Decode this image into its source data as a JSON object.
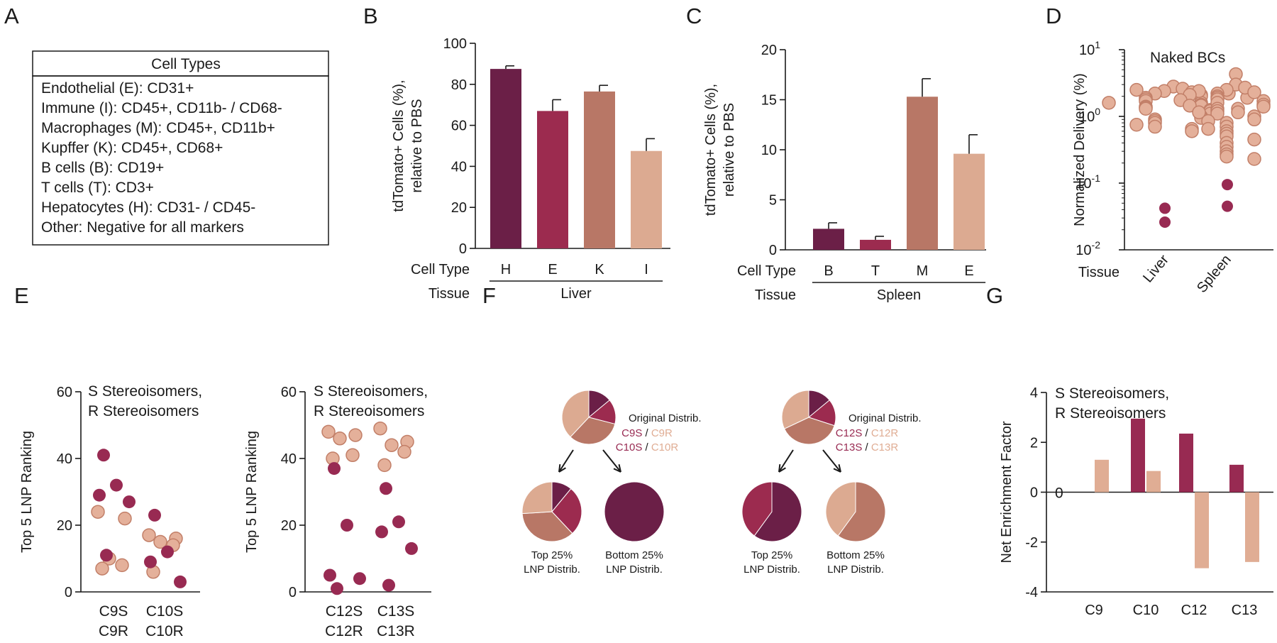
{
  "colors": {
    "H": "#6b1f47",
    "E": "#9c2b4f",
    "K": "#b87766",
    "I": "#dcaa91",
    "S": "#982a52",
    "R": "#e0ad94",
    "marker_fill": "#e4b09a",
    "marker_edge": "#c27f68",
    "outlier": "#982a52",
    "text": "#1a1a1a"
  },
  "panel_labels": [
    "A",
    "B",
    "C",
    "D",
    "E",
    "F",
    "G"
  ],
  "panel_a": {
    "title": "Cell Types",
    "rows": [
      "Endothelial (E): CD31+",
      "Immune (I): CD45+, CD11b- / CD68-",
      "Macrophages (M): CD45+, CD11b+",
      "Kupffer (K): CD45+, CD68+",
      "B cells (B): CD19+",
      "T cells (T): CD3+",
      "Hepatocytes (H): CD31- / CD45-",
      "Other: Negative for all markers"
    ]
  },
  "chart_data": [
    {
      "panel": "B",
      "type": "bar",
      "ylabel_lines": [
        "tdTomato+ Cells (%),",
        "relative to PBS"
      ],
      "ylim": [
        0,
        100
      ],
      "yticks": [
        "0",
        "20",
        "40",
        "60",
        "80",
        "100"
      ],
      "row_labels": [
        "Cell Type",
        "Tissue"
      ],
      "categories": [
        "H",
        "E",
        "K",
        "I"
      ],
      "values": [
        87.5,
        67,
        76.5,
        47.5
      ],
      "errors": [
        1.5,
        5.5,
        3,
        6
      ],
      "bar_colors": [
        "#6b1f47",
        "#9c2b4f",
        "#b87766",
        "#dcaa91"
      ],
      "group_label": "Liver"
    },
    {
      "panel": "C",
      "type": "bar",
      "ylabel_lines": [
        "tdTomato+ Cells (%),",
        "relative to PBS"
      ],
      "ylim": [
        0,
        20
      ],
      "yticks": [
        "0",
        "5",
        "10",
        "15",
        "20"
      ],
      "row_labels": [
        "Cell Type",
        "Tissue"
      ],
      "categories": [
        "B",
        "T",
        "M",
        "E"
      ],
      "values": [
        2.1,
        1.0,
        15.3,
        9.6
      ],
      "errors": [
        0.6,
        0.35,
        1.8,
        1.9
      ],
      "bar_colors": [
        "#6b1f47",
        "#9c2b4f",
        "#b87766",
        "#dcaa91"
      ],
      "group_label": "Spleen"
    },
    {
      "panel": "D",
      "type": "scatter",
      "ylabel": "Normalized Delivery (%)",
      "yscale": "log",
      "ylim": [
        0.01,
        10
      ],
      "yticks": [
        {
          "base": "10",
          "exp": "-2"
        },
        {
          "base": "10",
          "exp": "-1"
        },
        {
          "base": "10",
          "exp": "0"
        },
        {
          "base": "10",
          "exp": "1"
        }
      ],
      "row_label": "Tissue",
      "annotation": "Naked BCs",
      "categories": [
        "Liver",
        "Spleen"
      ],
      "series": [
        {
          "name": "Liver",
          "values": [
            2.8,
            2.6,
            2.4,
            2.3,
            2.2,
            2.1,
            2.0,
            1.9,
            1.8,
            1.7,
            1.6,
            1.5,
            1.45,
            1.4,
            1.35,
            1.3,
            1.25,
            1.2,
            1.1,
            1.0,
            0.95,
            0.9,
            0.85,
            0.8,
            0.7,
            0.65,
            0.6,
            2.5,
            2.2,
            1.9,
            1.6,
            1.3,
            1.15,
            0.75
          ],
          "outliers": [
            0.042,
            0.026
          ]
        },
        {
          "name": "Spleen",
          "values": [
            4.3,
            3.0,
            2.7,
            2.5,
            2.3,
            2.2,
            2.0,
            1.9,
            1.8,
            1.7,
            1.6,
            1.5,
            1.4,
            1.3,
            1.2,
            1.1,
            1.0,
            0.9,
            0.8,
            0.7,
            0.6,
            0.55,
            0.5,
            0.45,
            0.4,
            0.35,
            0.3,
            0.27,
            0.25,
            0.23,
            2.4,
            2.1,
            1.75,
            1.45,
            1.15,
            0.85,
            0.65
          ],
          "outliers": [
            0.095,
            0.045
          ]
        }
      ]
    },
    {
      "panel": "E1",
      "type": "scatter",
      "ylabel": "Top 5 LNP Ranking",
      "ylim": [
        0,
        60
      ],
      "yticks": [
        "0",
        "20",
        "40",
        "60"
      ],
      "legend": [
        "S Stereoisomers,",
        "R Stereoisomers"
      ],
      "groups": [
        {
          "label_s": "C9S",
          "label_r": "C9R",
          "s": [
            41,
            32,
            29,
            27,
            11
          ],
          "r": [
            24,
            22,
            10,
            8,
            7
          ]
        },
        {
          "label_s": "C10S",
          "label_r": "C10R",
          "s": [
            23,
            12,
            9,
            3
          ],
          "r": [
            17,
            16,
            15,
            14,
            6
          ]
        }
      ]
    },
    {
      "panel": "E2",
      "type": "scatter",
      "ylabel": "Top 5 LNP Ranking",
      "ylim": [
        0,
        60
      ],
      "yticks": [
        "0",
        "20",
        "40",
        "60"
      ],
      "legend": [
        "S Stereoisomers,",
        "R Stereoisomers"
      ],
      "groups": [
        {
          "label_s": "C12S",
          "label_r": "C12R",
          "s": [
            37,
            20,
            5,
            4,
            1
          ],
          "r": [
            48,
            47,
            46,
            41,
            40
          ]
        },
        {
          "label_s": "C13S",
          "label_r": "C13R",
          "s": [
            31,
            21,
            18,
            13,
            2
          ],
          "r": [
            49,
            45,
            44,
            42,
            38
          ]
        }
      ]
    },
    {
      "panel": "F",
      "type": "pie",
      "pies": [
        {
          "id": "f1-orig",
          "label_lines": [
            "Original Distrib."
          ],
          "slices": [
            {
              "name": "C9S",
              "value": 14,
              "color": "#6b1f47"
            },
            {
              "name": "C9R",
              "value": 15,
              "color": "#9c2b4f"
            },
            {
              "name": "C10S",
              "value": 33,
              "color": "#b87766"
            },
            {
              "name": "C10R",
              "value": 38,
              "color": "#dcaa91"
            }
          ]
        },
        {
          "id": "f1-top",
          "label_lines": [
            "Top 25%",
            "LNP Distrib."
          ],
          "slices": [
            {
              "name": "C9S",
              "value": 11,
              "color": "#6b1f47"
            },
            {
              "name": "C9R",
              "value": 27,
              "color": "#9c2b4f"
            },
            {
              "name": "C10S",
              "value": 36,
              "color": "#b87766"
            },
            {
              "name": "C10R",
              "value": 26,
              "color": "#dcaa91"
            }
          ]
        },
        {
          "id": "f1-bottom",
          "label_lines": [
            "Bottom 25%",
            "LNP Distrib."
          ],
          "slices": [
            {
              "name": "C9S",
              "value": 100,
              "color": "#6b1f47"
            }
          ]
        },
        {
          "id": "f2-orig",
          "label_lines": [
            "Original Distrib."
          ],
          "slices": [
            {
              "name": "C12S",
              "value": 14,
              "color": "#6b1f47"
            },
            {
              "name": "C12R",
              "value": 16,
              "color": "#9c2b4f"
            },
            {
              "name": "C13S",
              "value": 38,
              "color": "#b87766"
            },
            {
              "name": "C13R",
              "value": 32,
              "color": "#dcaa91"
            }
          ]
        },
        {
          "id": "f2-top",
          "label_lines": [
            "Top 25%",
            "LNP Distrib."
          ],
          "slices": [
            {
              "name": "C12S",
              "value": 60,
              "color": "#6b1f47"
            },
            {
              "name": "C12R",
              "value": 40,
              "color": "#9c2b4f"
            }
          ]
        },
        {
          "id": "f2-bottom",
          "label_lines": [
            "Bottom 25%",
            "LNP Distrib."
          ],
          "slices": [
            {
              "name": "C13S",
              "value": 60,
              "color": "#b87766"
            },
            {
              "name": "C13R",
              "value": 40,
              "color": "#dcaa91"
            }
          ]
        }
      ],
      "legend_sets": [
        {
          "row1": [
            "C9S",
            " / ",
            "C9R"
          ],
          "row2": [
            "C10S",
            " / ",
            "C10R"
          ]
        },
        {
          "row1": [
            "C12S",
            " / ",
            "C12R"
          ],
          "row2": [
            "C13S",
            " / ",
            "C13R"
          ]
        }
      ]
    },
    {
      "panel": "G",
      "type": "bar",
      "ylabel": "Net Enrichment Factor",
      "ylim": [
        -4,
        4
      ],
      "yticks": [
        "-4",
        "-2",
        "0",
        "2",
        "4"
      ],
      "legend": [
        "S Stereoisomers,",
        "R Stereoisomers"
      ],
      "zero_annotation": "0",
      "categories": [
        "C9",
        "C10",
        "C12",
        "C13"
      ],
      "series": [
        {
          "name": "S Stereoisomers",
          "values": [
            0,
            2.95,
            2.35,
            1.1
          ]
        },
        {
          "name": "R Stereoisomers",
          "values": [
            1.3,
            0.85,
            -3.05,
            -2.8
          ]
        }
      ]
    }
  ]
}
